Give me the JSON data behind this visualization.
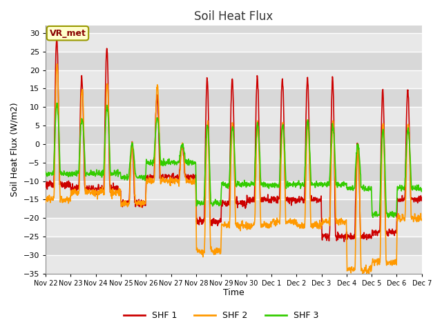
{
  "title": "Soil Heat Flux",
  "xlabel": "Time",
  "ylabel": "Soil Heat Flux (W/m2)",
  "ylim": [
    -35,
    32
  ],
  "yticks": [
    -35,
    -30,
    -25,
    -20,
    -15,
    -10,
    -5,
    0,
    5,
    10,
    15,
    20,
    25,
    30
  ],
  "line_colors": {
    "SHF 1": "#cc0000",
    "SHF 2": "#ff9900",
    "SHF 3": "#33cc00"
  },
  "line_width": 1.2,
  "background_color": "#ffffff",
  "plot_bg_color": "#d8d8d8",
  "grid_color": "#ffffff",
  "annotation_text": "VR_met",
  "annotation_bg": "#ffffcc",
  "annotation_border": "#999900",
  "annotation_text_color": "#880000",
  "legend_labels": [
    "SHF 1",
    "SHF 2",
    "SHF 3"
  ],
  "xtick_labels": [
    "Nov 22",
    "Nov 23",
    "Nov 24",
    "Nov 25",
    "Nov 26",
    "Nov 27",
    "Nov 28",
    "Nov 29",
    "Nov 30",
    "Dec 1",
    "Dec 2",
    "Dec 3",
    "Dec 4",
    "Dec 5",
    "Dec 6",
    "Dec 7"
  ],
  "n_days": 15,
  "pts_per_day": 96
}
